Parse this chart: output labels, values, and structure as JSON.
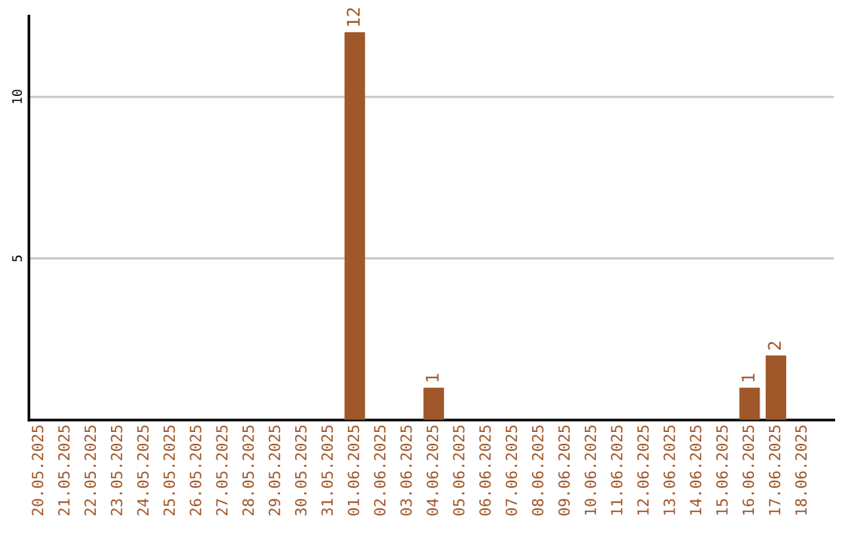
{
  "chart_data": {
    "type": "bar",
    "categories": [
      "20.05.2025",
      "21.05.2025",
      "22.05.2025",
      "23.05.2025",
      "24.05.2025",
      "25.05.2025",
      "26.05.2025",
      "27.05.2025",
      "28.05.2025",
      "29.05.2025",
      "30.05.2025",
      "31.05.2025",
      "01.06.2025",
      "02.06.2025",
      "03.06.2025",
      "04.06.2025",
      "05.06.2025",
      "06.06.2025",
      "07.06.2025",
      "08.06.2025",
      "09.06.2025",
      "10.06.2025",
      "11.06.2025",
      "12.06.2025",
      "13.06.2025",
      "14.06.2025",
      "15.06.2025",
      "16.06.2025",
      "17.06.2025",
      "18.06.2025"
    ],
    "values": [
      0,
      0,
      0,
      0,
      0,
      0,
      0,
      0,
      0,
      0,
      0,
      0,
      12,
      0,
      0,
      1,
      0,
      0,
      0,
      0,
      0,
      0,
      0,
      0,
      0,
      0,
      0,
      1,
      2,
      0
    ],
    "value_labels": [
      null,
      null,
      null,
      null,
      null,
      null,
      null,
      null,
      null,
      null,
      null,
      null,
      "12",
      null,
      null,
      "1",
      null,
      null,
      null,
      null,
      null,
      null,
      null,
      null,
      null,
      null,
      null,
      "1",
      "2",
      null
    ],
    "color": "#a0572a",
    "ylim": [
      0,
      12.5
    ],
    "yticks": [
      5,
      10
    ],
    "grid": "y"
  }
}
